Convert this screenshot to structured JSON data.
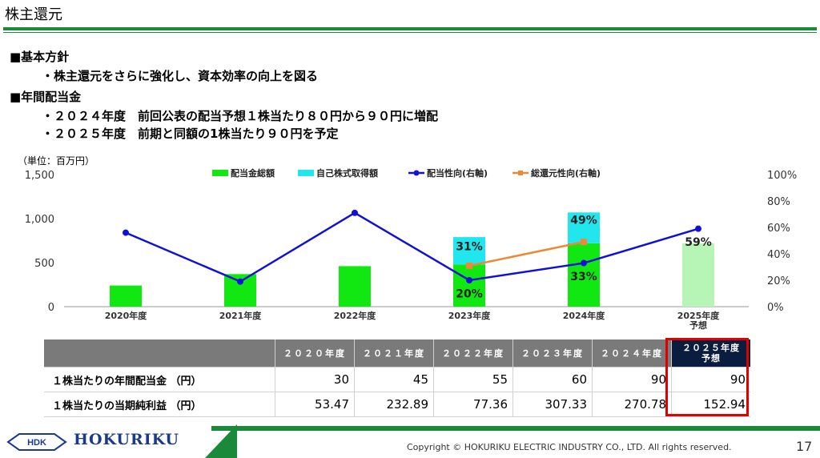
{
  "title": "株主還元",
  "sections": [
    {
      "heading": "■基本方針",
      "lines": [
        "・株主還元をさらに強化し、資本効率の向上を図る"
      ]
    },
    {
      "heading": "■年間配当金",
      "lines": [
        "・２０２４年度　前回公表の配当予想１株当たり８０円から９０円に増配",
        "・２０２５年度　前期と同額の1株当たり９０円を予定"
      ]
    }
  ],
  "unit_label": "（単位：百万円）",
  "chart_data": {
    "type": "bar",
    "categories": [
      "2020年度",
      "2021年度",
      "2022年度",
      "2023年度",
      "2024年度",
      "2025年度\n予想"
    ],
    "y_left": {
      "ticks": [
        "0",
        "500",
        "1,000",
        "1,500"
      ],
      "lim": [
        0,
        1500
      ]
    },
    "y_right": {
      "ticks": [
        "0%",
        "20%",
        "40%",
        "60%",
        "80%",
        "100%"
      ],
      "lim": [
        0,
        100
      ]
    },
    "legend": [
      "配当金総額",
      "自己株式取得額",
      "配当性向(右軸)",
      "総還元性向(右軸)"
    ],
    "series": [
      {
        "name": "配当金総額",
        "kind": "bar",
        "color": "#11e811",
        "values": [
          240,
          370,
          460,
          480,
          720,
          720
        ]
      },
      {
        "name": "自己株式取得額",
        "kind": "bar",
        "color": "#22e6ee",
        "values": [
          0,
          0,
          0,
          310,
          350,
          0
        ]
      },
      {
        "name": "配当性向(右軸)",
        "kind": "line",
        "color": "#1010d8",
        "values": [
          56,
          19,
          71,
          20,
          33,
          59
        ]
      },
      {
        "name": "総還元性向(右軸)",
        "kind": "line",
        "color": "#ee8836",
        "values": [
          null,
          null,
          null,
          31,
          49,
          null
        ]
      }
    ],
    "forecast_bar_color": "#b6f5b6",
    "labels": [
      {
        "text": "31%",
        "category": 3,
        "level": 640,
        "color": "#222"
      },
      {
        "text": "20%",
        "category": 3,
        "level": 105,
        "color": "#222"
      },
      {
        "text": "49%",
        "category": 4,
        "level": 940,
        "color": "#222"
      },
      {
        "text": "33%",
        "category": 4,
        "level": 300,
        "color": "#222"
      },
      {
        "text": "59%",
        "category": 5,
        "level": 690,
        "color": "#222"
      }
    ]
  },
  "table": {
    "headers": [
      "２０２０年度",
      "２０２１年度",
      "２０２２年度",
      "２０２３年度",
      "２０２４年度",
      "２０２５年度"
    ],
    "highlight_sub": "予想",
    "rows": [
      {
        "label": "１株当たりの年間配当金 （円）",
        "values": [
          "30",
          "45",
          "55",
          "60",
          "90",
          "90"
        ]
      },
      {
        "label": "１株当たりの当期純利益 （円）",
        "values": [
          "53.47",
          "232.89",
          "77.36",
          "307.33",
          "270.78",
          "152.94"
        ]
      }
    ]
  },
  "footer": {
    "logo_mark": "HDK",
    "logo_text": "HOKURIKU",
    "copyright": "Copyright © HOKURIKU ELECTRIC INDUSTRY CO., LTD. All rights reserved.",
    "page": "17"
  }
}
